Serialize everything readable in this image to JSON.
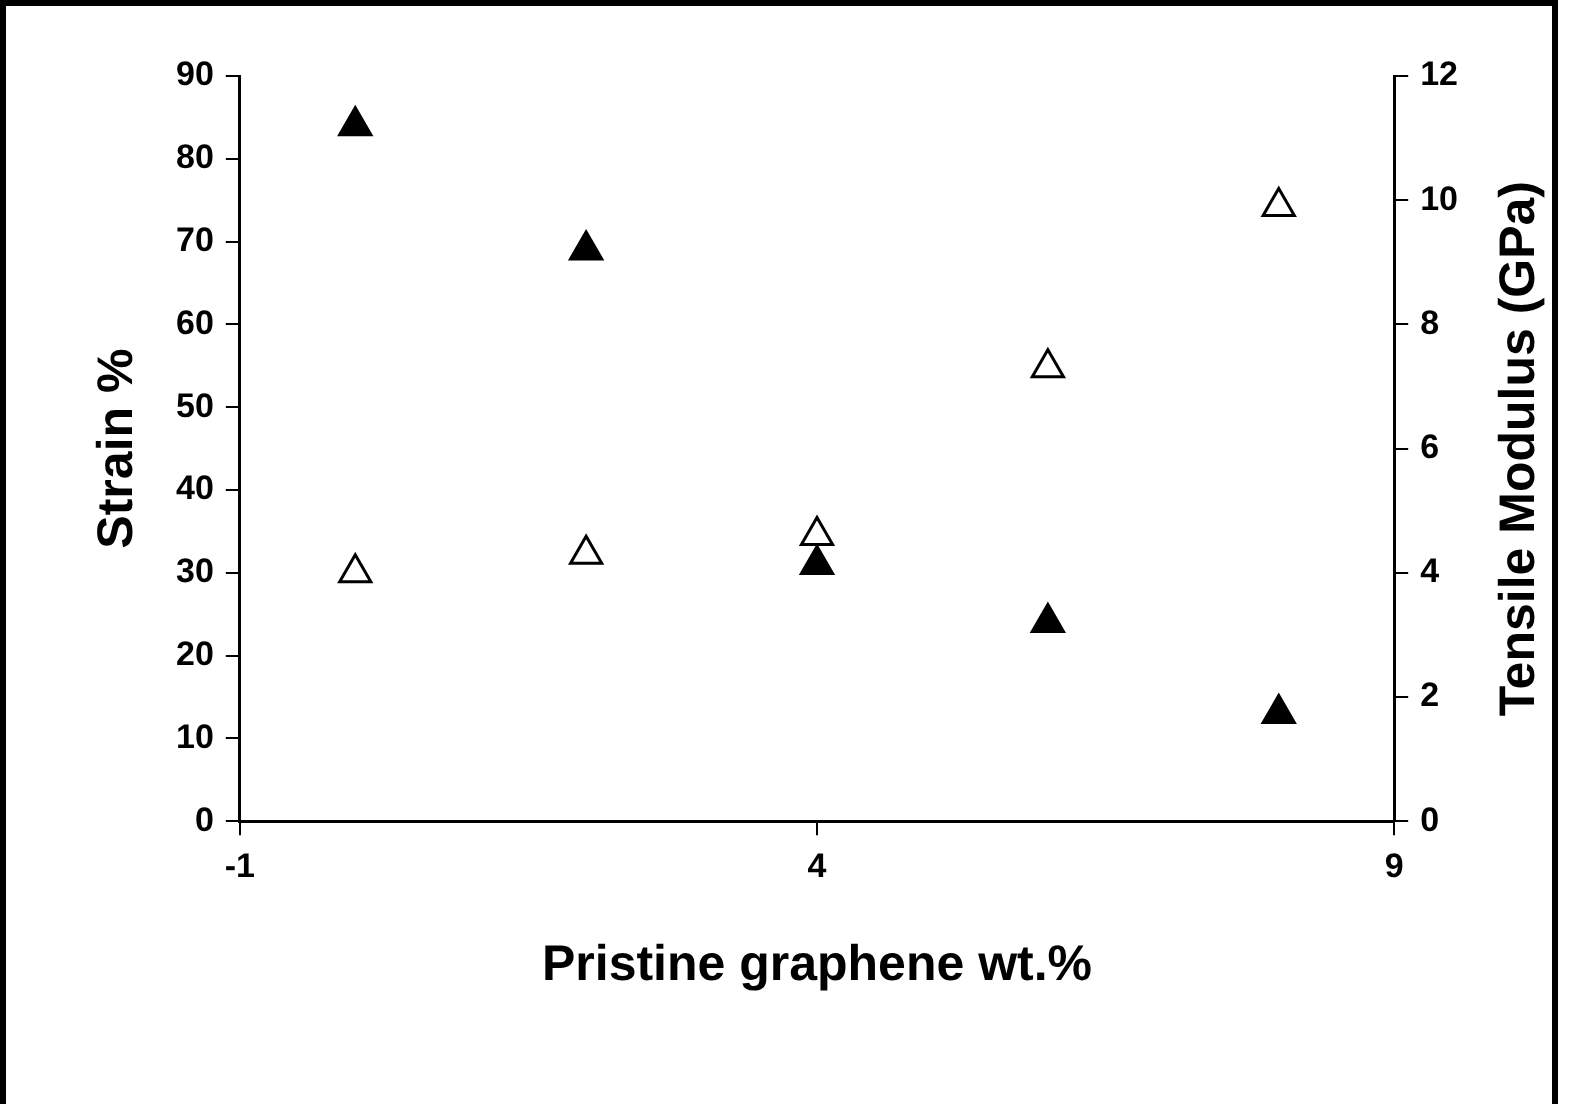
{
  "chart_data": {
    "type": "scatter",
    "xlabel": "Pristine graphene wt.%",
    "ylabel": "Strain %",
    "y2label": "Tensile Modulus (GPa)",
    "x": [
      0,
      2,
      4,
      6,
      8
    ],
    "series": [
      {
        "color": "#000000",
        "values": [
          84,
          69,
          31,
          24,
          13
        ]
      },
      {
        "color": "#ffffff",
        "axis": "y2",
        "values": [
          4.0,
          4.3,
          4.6,
          7.3,
          9.9
        ]
      }
    ],
    "xlim": [
      -1,
      9
    ],
    "xticks": [
      -1,
      4,
      9
    ],
    "ylim": [
      0,
      90
    ],
    "yticks": [
      0,
      10,
      20,
      30,
      40,
      50,
      60,
      70,
      80,
      90
    ],
    "y2lim": [
      0,
      12
    ],
    "y2ticks": [
      0,
      2,
      4,
      6,
      8,
      10,
      12
    ],
    "grid": false,
    "legend": false,
    "marker": "triangle"
  }
}
